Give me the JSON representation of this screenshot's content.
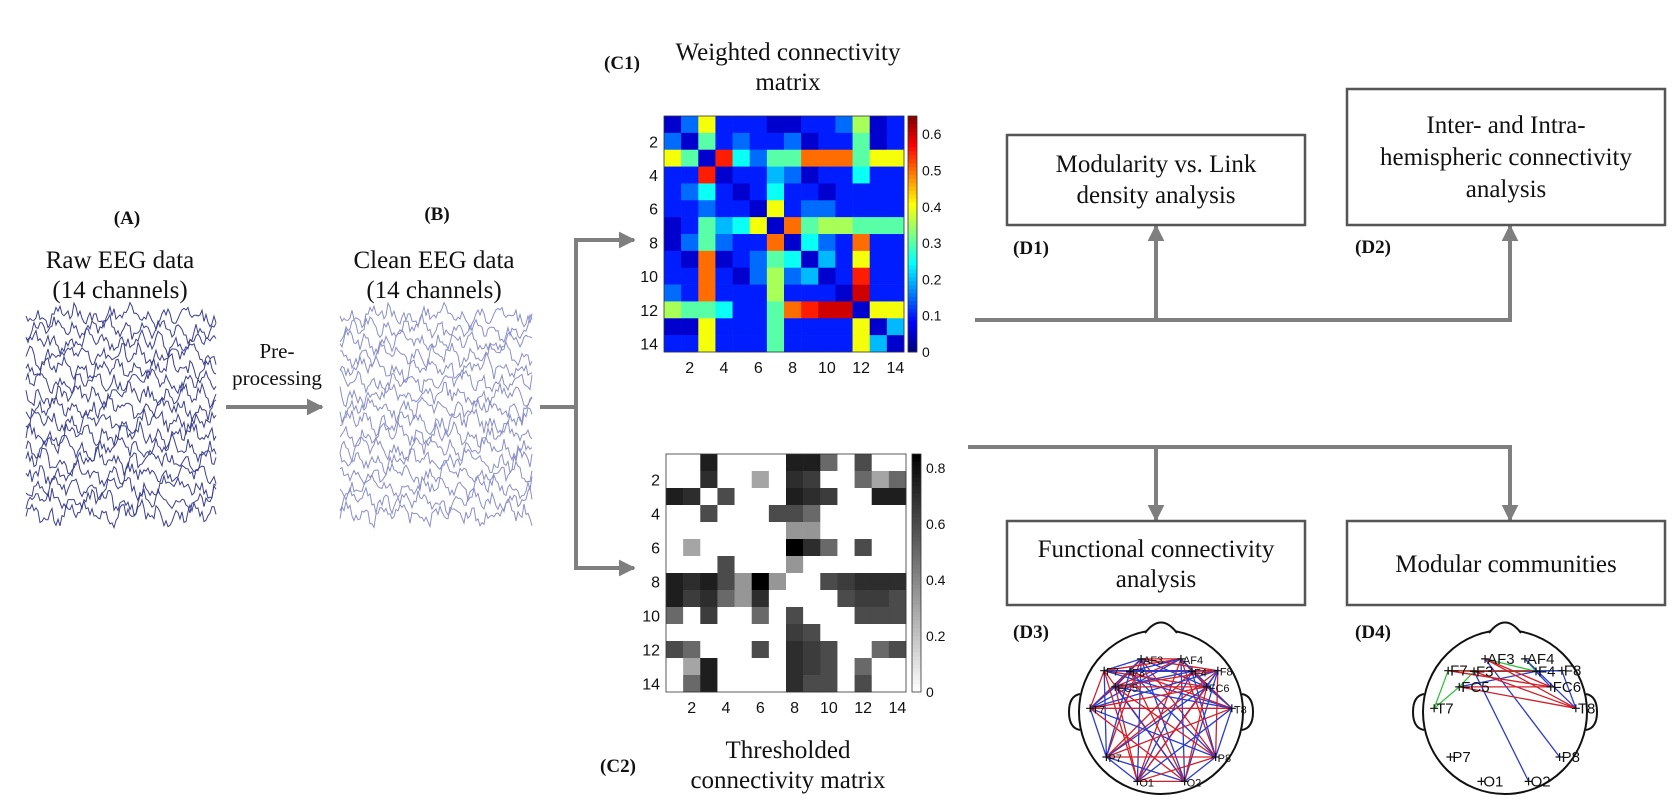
{
  "panels": {
    "a": {
      "label": "(A)",
      "title_lines": [
        "Raw EEG data",
        "(14 channels)"
      ]
    },
    "b": {
      "label": "(B)",
      "title_lines": [
        "Clean EEG data",
        "(14 channels)"
      ]
    },
    "arrow_ab": {
      "text_lines": [
        "Pre-",
        "processing"
      ]
    },
    "c1": {
      "label": "(C1)",
      "title_lines": [
        "Weighted connectivity",
        "matrix"
      ]
    },
    "c2": {
      "label": "(C2)",
      "title_lines": [
        "Thresholded",
        "connectivity matrix"
      ]
    },
    "d1": {
      "label": "(D1)",
      "box_lines": [
        "Modularity vs. Link",
        "density analysis"
      ]
    },
    "d2": {
      "label": "(D2)",
      "box_lines": [
        "Inter- and Intra-",
        "hemispheric connectivity",
        "analysis"
      ]
    },
    "d3": {
      "label": "(D3)",
      "box_lines": [
        "Functional connectivity",
        "analysis"
      ]
    },
    "d4": {
      "label": "(D4)",
      "box_lines": [
        "Modular communities"
      ]
    }
  },
  "matrix_axes": {
    "ticks": [
      "2",
      "4",
      "6",
      "8",
      "10",
      "12",
      "14"
    ]
  },
  "colorbar_c1": {
    "ticks": [
      "0",
      "0.1",
      "0.2",
      "0.3",
      "0.4",
      "0.5",
      "0.6"
    ],
    "max": 0.65
  },
  "colorbar_c2": {
    "ticks": [
      "0",
      "0.2",
      "0.4",
      "0.6",
      "0.8"
    ],
    "max": 0.85
  },
  "electrodes": [
    "AF3",
    "AF4",
    "F7",
    "F3",
    "F4",
    "F8",
    "FC5",
    "FC6",
    "T7",
    "T8",
    "P7",
    "P8",
    "O1",
    "O2"
  ],
  "colors": {
    "arrow": "#7f7f7f",
    "box_border": "#555555",
    "eeg_raw": "#3a3f8f",
    "eeg_clean": "#8a8fc8",
    "edge_red": "#d0202a",
    "edge_blue": "#2a3ccc",
    "edge_green": "#30c040"
  },
  "chart_data": [
    {
      "type": "heatmap",
      "name": "weighted",
      "title": "Weighted connectivity matrix",
      "rows": 14,
      "cols": 14,
      "zlim": [
        0,
        0.65
      ],
      "colormap": "jet",
      "values": [
        [
          0.05,
          0.15,
          0.4,
          0.1,
          0.1,
          0.1,
          0.05,
          0.05,
          0.1,
          0.1,
          0.15,
          0.35,
          0.05,
          0.1
        ],
        [
          0.15,
          0.05,
          0.3,
          0.1,
          0.15,
          0.1,
          0.1,
          0.15,
          0.05,
          0.1,
          0.1,
          0.3,
          0.05,
          0.1
        ],
        [
          0.4,
          0.3,
          0.05,
          0.55,
          0.25,
          0.15,
          0.3,
          0.3,
          0.5,
          0.5,
          0.5,
          0.3,
          0.4,
          0.4
        ],
        [
          0.1,
          0.1,
          0.55,
          0.05,
          0.1,
          0.1,
          0.2,
          0.15,
          0.05,
          0.1,
          0.1,
          0.25,
          0.1,
          0.1
        ],
        [
          0.1,
          0.15,
          0.25,
          0.1,
          0.05,
          0.1,
          0.25,
          0.1,
          0.1,
          0.05,
          0.1,
          0.1,
          0.1,
          0.1
        ],
        [
          0.1,
          0.1,
          0.15,
          0.1,
          0.1,
          0.05,
          0.4,
          0.1,
          0.15,
          0.15,
          0.1,
          0.1,
          0.1,
          0.1
        ],
        [
          0.05,
          0.1,
          0.3,
          0.2,
          0.25,
          0.4,
          0.05,
          0.5,
          0.3,
          0.35,
          0.35,
          0.3,
          0.3,
          0.3
        ],
        [
          0.05,
          0.15,
          0.3,
          0.15,
          0.1,
          0.1,
          0.5,
          0.05,
          0.25,
          0.15,
          0.1,
          0.5,
          0.1,
          0.1
        ],
        [
          0.1,
          0.05,
          0.5,
          0.05,
          0.1,
          0.15,
          0.3,
          0.25,
          0.05,
          0.2,
          0.1,
          0.4,
          0.1,
          0.1
        ],
        [
          0.1,
          0.1,
          0.5,
          0.1,
          0.05,
          0.15,
          0.35,
          0.15,
          0.2,
          0.05,
          0.1,
          0.55,
          0.1,
          0.1
        ],
        [
          0.15,
          0.1,
          0.5,
          0.1,
          0.1,
          0.1,
          0.35,
          0.1,
          0.1,
          0.1,
          0.05,
          0.6,
          0.1,
          0.1
        ],
        [
          0.35,
          0.3,
          0.3,
          0.25,
          0.1,
          0.1,
          0.3,
          0.5,
          0.55,
          0.6,
          0.6,
          0.05,
          0.4,
          0.4
        ],
        [
          0.05,
          0.05,
          0.4,
          0.1,
          0.1,
          0.1,
          0.3,
          0.1,
          0.1,
          0.1,
          0.1,
          0.4,
          0.05,
          0.2
        ],
        [
          0.1,
          0.1,
          0.4,
          0.1,
          0.1,
          0.1,
          0.3,
          0.1,
          0.1,
          0.1,
          0.1,
          0.4,
          0.2,
          0.05
        ]
      ]
    },
    {
      "type": "heatmap",
      "name": "thresholded",
      "title": "Thresholded connectivity matrix",
      "rows": 14,
      "cols": 14,
      "zlim": [
        0,
        0.85
      ],
      "colormap": "gray-reversed",
      "values": [
        [
          0,
          0,
          0.75,
          0,
          0,
          0,
          0,
          0.75,
          0.75,
          0.5,
          0,
          0.6,
          0,
          0
        ],
        [
          0,
          0,
          0.7,
          0,
          0,
          0.3,
          0,
          0.7,
          0.65,
          0,
          0,
          0.5,
          0.3,
          0.5
        ],
        [
          0.75,
          0.7,
          0,
          0.6,
          0,
          0,
          0,
          0.75,
          0.7,
          0.65,
          0,
          0,
          0.75,
          0.75
        ],
        [
          0,
          0,
          0.6,
          0,
          0,
          0,
          0.6,
          0.6,
          0.5,
          0,
          0,
          0,
          0,
          0
        ],
        [
          0,
          0,
          0,
          0,
          0,
          0,
          0,
          0.35,
          0.35,
          0,
          0,
          0,
          0,
          0
        ],
        [
          0,
          0.3,
          0,
          0,
          0,
          0,
          0,
          0.85,
          0.7,
          0.5,
          0,
          0.6,
          0,
          0
        ],
        [
          0,
          0,
          0,
          0.6,
          0,
          0,
          0,
          0.35,
          0,
          0,
          0,
          0,
          0,
          0
        ],
        [
          0.75,
          0.7,
          0.75,
          0.6,
          0.35,
          0.85,
          0.35,
          0,
          0,
          0.6,
          0.65,
          0.7,
          0.7,
          0.7
        ],
        [
          0.75,
          0.65,
          0.7,
          0.5,
          0.35,
          0.7,
          0,
          0,
          0,
          0,
          0.6,
          0.65,
          0.65,
          0.6
        ],
        [
          0.5,
          0,
          0.65,
          0,
          0,
          0.5,
          0,
          0.6,
          0,
          0,
          0,
          0.6,
          0.6,
          0.6
        ],
        [
          0,
          0,
          0,
          0,
          0,
          0,
          0,
          0.65,
          0.6,
          0,
          0,
          0,
          0,
          0
        ],
        [
          0.6,
          0.5,
          0,
          0,
          0,
          0.6,
          0,
          0.7,
          0.65,
          0.6,
          0,
          0,
          0.5,
          0.6
        ],
        [
          0,
          0.3,
          0.75,
          0,
          0,
          0,
          0,
          0.7,
          0.65,
          0.6,
          0,
          0.5,
          0,
          0
        ],
        [
          0,
          0.5,
          0.75,
          0,
          0,
          0,
          0,
          0.7,
          0.6,
          0.6,
          0,
          0.6,
          0,
          0
        ]
      ]
    }
  ]
}
